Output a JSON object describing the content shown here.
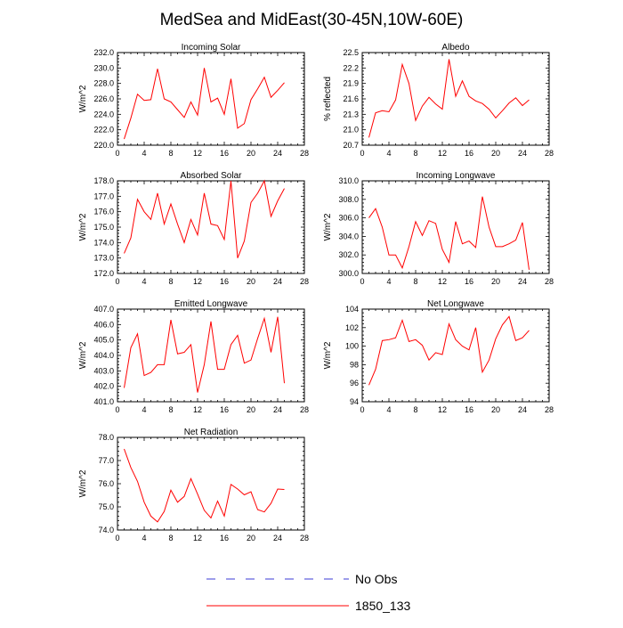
{
  "title": "MedSea and MidEast(30-45N,10W-60E)",
  "legend": {
    "items": [
      {
        "label": "No Obs",
        "color": "#3b3bd6",
        "dashed": true
      },
      {
        "label": "1850_133",
        "color": "#ff0000",
        "dashed": false
      }
    ]
  },
  "chart_data": [
    {
      "type": "line",
      "title": "Incoming Solar",
      "xlabel": "",
      "ylabel": "W/m^2",
      "xlim": [
        0,
        28
      ],
      "ylim": [
        220.0,
        232.0
      ],
      "xticks": [
        "0",
        "4",
        "8",
        "12",
        "16",
        "20",
        "24",
        "28"
      ],
      "yticks": [
        "220.0",
        "222.0",
        "224.0",
        "226.0",
        "228.0",
        "230.0",
        "232.0"
      ],
      "x": [
        1,
        2,
        3,
        4,
        5,
        6,
        7,
        8,
        9,
        10,
        11,
        12,
        13,
        14,
        15,
        16,
        17,
        18,
        19,
        20,
        21,
        22,
        23,
        24,
        25
      ],
      "series": [
        {
          "name": "1850_133",
          "color": "#ff0000",
          "values": [
            220.8,
            223.5,
            226.6,
            225.8,
            225.9,
            229.9,
            226.0,
            225.6,
            224.6,
            223.6,
            225.6,
            223.9,
            230.0,
            225.6,
            226.1,
            224.0,
            228.6,
            222.2,
            222.8,
            225.9,
            227.3,
            228.8,
            226.2,
            227.1,
            228.1
          ]
        }
      ]
    },
    {
      "type": "line",
      "title": "Albedo",
      "xlabel": "",
      "ylabel": "% reflected",
      "xlim": [
        0,
        28
      ],
      "ylim": [
        20.7,
        22.5
      ],
      "xticks": [
        "0",
        "4",
        "8",
        "12",
        "16",
        "20",
        "24",
        "28"
      ],
      "yticks": [
        "20.7",
        "21.0",
        "21.3",
        "21.6",
        "21.9",
        "22.2",
        "22.5"
      ],
      "x": [
        1,
        2,
        3,
        4,
        5,
        6,
        7,
        8,
        9,
        10,
        11,
        12,
        13,
        14,
        15,
        16,
        17,
        18,
        19,
        20,
        21,
        22,
        23,
        24,
        25
      ],
      "series": [
        {
          "name": "1850_133",
          "color": "#ff0000",
          "values": [
            20.85,
            21.33,
            21.37,
            21.35,
            21.58,
            22.27,
            21.9,
            21.18,
            21.46,
            21.63,
            21.5,
            21.4,
            22.37,
            21.65,
            21.95,
            21.65,
            21.56,
            21.51,
            21.4,
            21.23,
            21.37,
            21.52,
            21.62,
            21.47,
            21.58
          ]
        }
      ]
    },
    {
      "type": "line",
      "title": "Absorbed Solar",
      "xlabel": "",
      "ylabel": "W/m^2",
      "xlim": [
        0,
        28
      ],
      "ylim": [
        172.0,
        178.0
      ],
      "xticks": [
        "0",
        "4",
        "8",
        "12",
        "16",
        "20",
        "24",
        "28"
      ],
      "yticks": [
        "172.0",
        "173.0",
        "174.0",
        "175.0",
        "176.0",
        "177.0",
        "178.0"
      ],
      "x": [
        1,
        2,
        3,
        4,
        5,
        6,
        7,
        8,
        9,
        10,
        11,
        12,
        13,
        14,
        15,
        16,
        17,
        18,
        19,
        20,
        21,
        22,
        23,
        24,
        25
      ],
      "series": [
        {
          "name": "1850_133",
          "color": "#ff0000",
          "values": [
            173.3,
            174.3,
            176.8,
            176.0,
            175.5,
            177.2,
            175.2,
            176.5,
            175.2,
            174.0,
            175.5,
            174.5,
            177.2,
            175.2,
            175.1,
            174.2,
            178.0,
            173.0,
            174.1,
            176.6,
            177.2,
            178.0,
            175.7,
            176.7,
            177.5
          ]
        }
      ]
    },
    {
      "type": "line",
      "title": "Incoming Longwave",
      "xlabel": "",
      "ylabel": "W/m^2",
      "xlim": [
        0,
        28
      ],
      "ylim": [
        300.0,
        310.0
      ],
      "xticks": [
        "0",
        "4",
        "8",
        "12",
        "16",
        "20",
        "24",
        "28"
      ],
      "yticks": [
        "300.0",
        "302.0",
        "304.0",
        "306.0",
        "308.0",
        "310.0"
      ],
      "x": [
        1,
        2,
        3,
        4,
        5,
        6,
        7,
        8,
        9,
        10,
        11,
        12,
        13,
        14,
        15,
        16,
        17,
        18,
        19,
        20,
        21,
        22,
        23,
        24,
        25
      ],
      "series": [
        {
          "name": "1850_133",
          "color": "#ff0000",
          "values": [
            306.0,
            307.0,
            305.0,
            302.0,
            302.0,
            300.6,
            302.9,
            305.6,
            304.1,
            305.7,
            305.4,
            302.6,
            301.2,
            305.6,
            303.2,
            303.5,
            302.8,
            308.3,
            305.0,
            302.9,
            302.9,
            303.2,
            303.6,
            305.5,
            300.4
          ]
        }
      ]
    },
    {
      "type": "line",
      "title": "Emitted Longwave",
      "xlabel": "",
      "ylabel": "W/m^2",
      "xlim": [
        0,
        28
      ],
      "ylim": [
        401.0,
        407.0
      ],
      "xticks": [
        "0",
        "4",
        "8",
        "12",
        "16",
        "20",
        "24",
        "28"
      ],
      "yticks": [
        "401.0",
        "402.0",
        "403.0",
        "404.0",
        "405.0",
        "406.0",
        "407.0"
      ],
      "x": [
        1,
        2,
        3,
        4,
        5,
        6,
        7,
        8,
        9,
        10,
        11,
        12,
        13,
        14,
        15,
        16,
        17,
        18,
        19,
        20,
        21,
        22,
        23,
        24,
        25
      ],
      "series": [
        {
          "name": "1850_133",
          "color": "#ff0000",
          "values": [
            401.9,
            404.5,
            405.4,
            402.7,
            402.9,
            403.4,
            403.4,
            406.3,
            404.1,
            404.2,
            404.7,
            401.6,
            403.4,
            406.2,
            403.1,
            403.1,
            404.7,
            405.3,
            403.5,
            403.7,
            405.1,
            406.4,
            404.2,
            406.5,
            402.2
          ]
        }
      ]
    },
    {
      "type": "line",
      "title": "Net Longwave",
      "xlabel": "",
      "ylabel": "W/m^2",
      "xlim": [
        0,
        28
      ],
      "ylim": [
        94,
        104
      ],
      "xticks": [
        "0",
        "4",
        "8",
        "12",
        "16",
        "20",
        "24",
        "28"
      ],
      "yticks": [
        "94",
        "96",
        "98",
        "100",
        "102",
        "104"
      ],
      "x": [
        1,
        2,
        3,
        4,
        5,
        6,
        7,
        8,
        9,
        10,
        11,
        12,
        13,
        14,
        15,
        16,
        17,
        18,
        19,
        20,
        21,
        22,
        23,
        24,
        25
      ],
      "series": [
        {
          "name": "1850_133",
          "color": "#ff0000",
          "values": [
            95.8,
            97.5,
            100.6,
            100.7,
            100.9,
            102.8,
            100.5,
            100.7,
            100.1,
            98.5,
            99.3,
            99.1,
            102.4,
            100.7,
            100.0,
            99.6,
            102.0,
            97.2,
            98.5,
            100.8,
            102.3,
            103.2,
            100.6,
            100.9,
            101.7
          ]
        }
      ]
    },
    {
      "type": "line",
      "title": "Net Radiation",
      "xlabel": "",
      "ylabel": "W/m^2",
      "xlim": [
        0,
        28
      ],
      "ylim": [
        74.0,
        78.0
      ],
      "xticks": [
        "0",
        "4",
        "8",
        "12",
        "16",
        "20",
        "24",
        "28"
      ],
      "yticks": [
        "74.0",
        "75.0",
        "76.0",
        "77.0",
        "78.0"
      ],
      "x": [
        1,
        2,
        3,
        4,
        5,
        6,
        7,
        8,
        9,
        10,
        11,
        12,
        13,
        14,
        15,
        16,
        17,
        18,
        19,
        20,
        21,
        22,
        23,
        24,
        25
      ],
      "series": [
        {
          "name": "1850_133",
          "color": "#ff0000",
          "values": [
            77.5,
            76.7,
            76.1,
            75.2,
            74.6,
            74.35,
            74.8,
            75.72,
            75.2,
            75.45,
            76.22,
            75.55,
            74.85,
            74.52,
            75.25,
            74.6,
            75.97,
            75.77,
            75.52,
            75.65,
            74.88,
            74.78,
            75.15,
            75.77,
            75.75
          ]
        }
      ]
    }
  ]
}
